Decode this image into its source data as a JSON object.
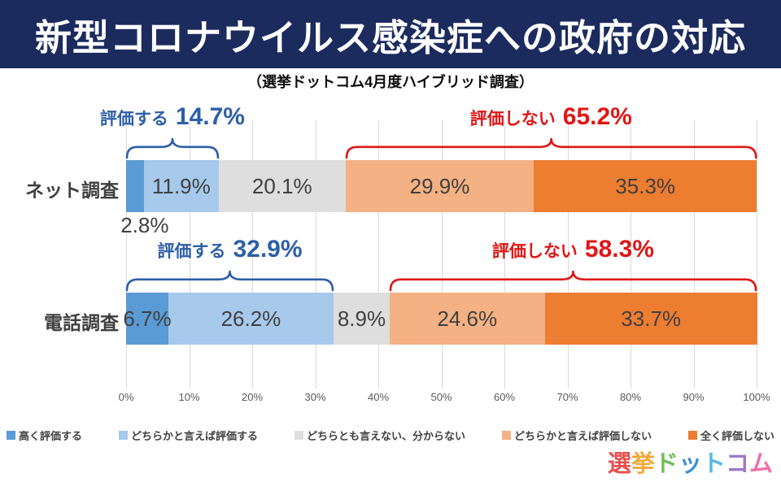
{
  "header": {
    "title": "新型コロナウイルス感染症への政府の対応"
  },
  "subtitle": "（選挙ドットコム4月度ハイブリッド調査）",
  "colors": {
    "header_bg": "#1B2B5E",
    "annotation_blue": "#2E5FA8",
    "annotation_red": "#E01616",
    "data_label": "#404040",
    "category_label": "#3F3F3F",
    "axis_text": "#595959",
    "gridline": "#D9D9D9",
    "legend_text": "#404040"
  },
  "chart_data": {
    "type": "bar",
    "orientation": "horizontal",
    "stacked": true,
    "grid": true,
    "legend_position": "bottom",
    "xlim": [
      0,
      100
    ],
    "x_ticks": [
      "0%",
      "10%",
      "20%",
      "30%",
      "40%",
      "50%",
      "60%",
      "70%",
      "80%",
      "90%",
      "100%"
    ],
    "value_suffix": "%",
    "categories": [
      "ネット調査",
      "電話調査"
    ],
    "series": [
      {
        "name": "高く評価する",
        "color": "#5B9BD5",
        "values": [
          2.8,
          6.7
        ]
      },
      {
        "name": "どちらかと言えば評価する",
        "color": "#A6C9EC",
        "values": [
          11.9,
          26.2
        ]
      },
      {
        "name": "どちらとも言えない、分からない",
        "color": "#DEDEDE",
        "values": [
          20.1,
          8.9
        ]
      },
      {
        "name": "どちらかと言えば評価しない",
        "color": "#F4B183",
        "values": [
          29.9,
          24.6
        ]
      },
      {
        "name": "全く評価しない",
        "color": "#ED7D31",
        "values": [
          35.3,
          33.7
        ]
      }
    ],
    "annotations": [
      {
        "row": 0,
        "label": "評価する",
        "value": "14.7%",
        "start": 0,
        "end": 14.7,
        "color_key": "blue"
      },
      {
        "row": 0,
        "label": "評価しない",
        "value": "65.2%",
        "start": 34.8,
        "end": 100,
        "color_key": "red"
      },
      {
        "row": 1,
        "label": "評価する",
        "value": "32.9%",
        "start": 0,
        "end": 32.9,
        "color_key": "blue"
      },
      {
        "row": 1,
        "label": "評価しない",
        "value": "58.3%",
        "start": 41.8,
        "end": 100,
        "color_key": "red"
      }
    ]
  },
  "logo": {
    "text": "選挙ドットコム",
    "letters": [
      {
        "ch": "選",
        "color": "#E8504F"
      },
      {
        "ch": "挙",
        "color": "#F2A93B"
      },
      {
        "ch": "ド",
        "color": "#6FBE54"
      },
      {
        "ch": "ッ",
        "color": "#3D8FD1"
      },
      {
        "ch": "ト",
        "color": "#56B7E6"
      },
      {
        "ch": "コ",
        "color": "#9A7BC8"
      },
      {
        "ch": "ム",
        "color": "#EF6FA8"
      }
    ]
  }
}
